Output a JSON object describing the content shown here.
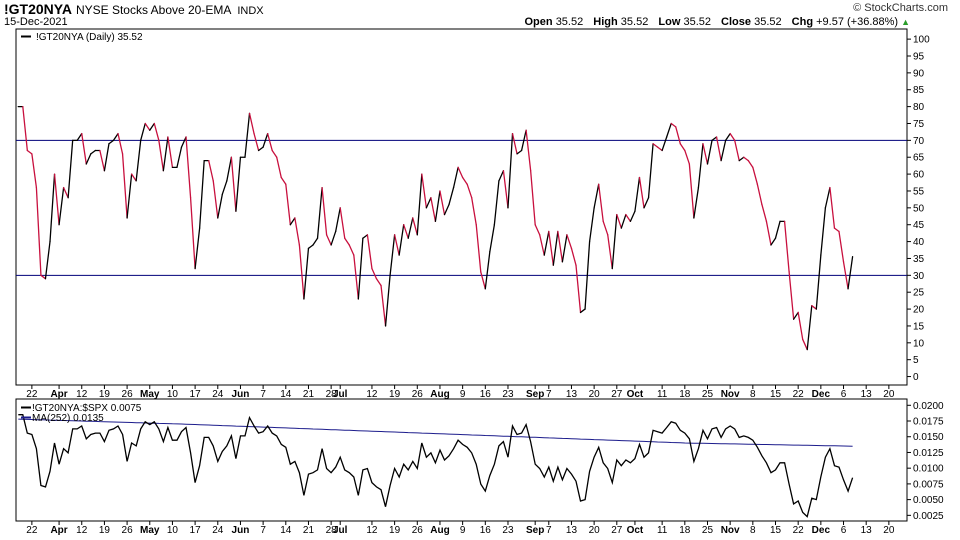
{
  "header": {
    "symbol": "!GT20NYA",
    "description": "NYSE Stocks Above 20-EMA",
    "exchange": "INDX",
    "date": "15-Dec-2021",
    "brand": "© StockCharts.com",
    "open_label": "Open",
    "open": "35.52",
    "high_label": "High",
    "high": "35.52",
    "low_label": "Low",
    "low": "35.52",
    "close_label": "Close",
    "close": "35.52",
    "chg_label": "Chg",
    "chg": "+9.57 (+36.88%)",
    "up_icon": "triangle-up-icon"
  },
  "colors": {
    "up": "#000000",
    "down": "#c8103e",
    "ref": "#00007a",
    "ma": "#1c1c8c"
  },
  "x_axis_labels": [
    {
      "t": "22",
      "i": 3,
      "m": false
    },
    {
      "t": "Apr",
      "i": 9,
      "m": true
    },
    {
      "t": "12",
      "i": 14,
      "m": false
    },
    {
      "t": "19",
      "i": 19,
      "m": false
    },
    {
      "t": "26",
      "i": 24,
      "m": false
    },
    {
      "t": "May",
      "i": 29,
      "m": true
    },
    {
      "t": "10",
      "i": 34,
      "m": false
    },
    {
      "t": "17",
      "i": 39,
      "m": false
    },
    {
      "t": "24",
      "i": 44,
      "m": false
    },
    {
      "t": "Jun",
      "i": 49,
      "m": true
    },
    {
      "t": "7",
      "i": 54,
      "m": false
    },
    {
      "t": "14",
      "i": 59,
      "m": false
    },
    {
      "t": "21",
      "i": 64,
      "m": false
    },
    {
      "t": "28",
      "i": 69,
      "m": false
    },
    {
      "t": "Jul",
      "i": 71,
      "m": true
    },
    {
      "t": "12",
      "i": 78,
      "m": false
    },
    {
      "t": "19",
      "i": 83,
      "m": false
    },
    {
      "t": "26",
      "i": 88,
      "m": false
    },
    {
      "t": "Aug",
      "i": 93,
      "m": true
    },
    {
      "t": "9",
      "i": 98,
      "m": false
    },
    {
      "t": "16",
      "i": 103,
      "m": false
    },
    {
      "t": "23",
      "i": 108,
      "m": false
    },
    {
      "t": "Sep",
      "i": 114,
      "m": true
    },
    {
      "t": "7",
      "i": 117,
      "m": false
    },
    {
      "t": "13",
      "i": 122,
      "m": false
    },
    {
      "t": "20",
      "i": 127,
      "m": false
    },
    {
      "t": "27",
      "i": 132,
      "m": false
    },
    {
      "t": "Oct",
      "i": 136,
      "m": true
    },
    {
      "t": "11",
      "i": 142,
      "m": false
    },
    {
      "t": "18",
      "i": 147,
      "m": false
    },
    {
      "t": "25",
      "i": 152,
      "m": false
    },
    {
      "t": "Nov",
      "i": 157,
      "m": true
    },
    {
      "t": "8",
      "i": 162,
      "m": false
    },
    {
      "t": "15",
      "i": 167,
      "m": false
    },
    {
      "t": "22",
      "i": 172,
      "m": false
    },
    {
      "t": "Dec",
      "i": 177,
      "m": true
    },
    {
      "t": "6",
      "i": 182,
      "m": false
    },
    {
      "t": "13",
      "i": 187,
      "m": false
    },
    {
      "t": "20",
      "i": 192,
      "m": false
    }
  ],
  "chart_data": [
    {
      "type": "line",
      "legend": "!GT20NYA (Daily) 35.52",
      "y_ticks": [
        0,
        5,
        10,
        15,
        20,
        25,
        30,
        35,
        40,
        45,
        50,
        55,
        60,
        65,
        70,
        75,
        80,
        85,
        90,
        95,
        100
      ],
      "ylim": [
        -2.5,
        103
      ],
      "reference_lines": [
        70,
        30
      ],
      "x_index_range": [
        -0.5,
        196
      ],
      "values": [
        80,
        80,
        67,
        66,
        56,
        30,
        29,
        40,
        60,
        45,
        56,
        53,
        70,
        70,
        72,
        63,
        66,
        67,
        67,
        61,
        69,
        70,
        72,
        66,
        47,
        60,
        58,
        70,
        75,
        73,
        75,
        70,
        61,
        71,
        62,
        62,
        68,
        71,
        53,
        32,
        44,
        64,
        64,
        58,
        47,
        54,
        58,
        65,
        49,
        65,
        65,
        78,
        72,
        67,
        68,
        72,
        67,
        65,
        59,
        57,
        45,
        47,
        39,
        23,
        38,
        39,
        41,
        56,
        42,
        39,
        43,
        50,
        41,
        39,
        36,
        23,
        41,
        42,
        32,
        29,
        27,
        15,
        30,
        42,
        36,
        45,
        41,
        47,
        42,
        60,
        50,
        53,
        46,
        55,
        48,
        51,
        56,
        62,
        59,
        57,
        53,
        45,
        31,
        26,
        37,
        45,
        58,
        61,
        50,
        72,
        66,
        67,
        73,
        61,
        45,
        42,
        36,
        43,
        33,
        43,
        34,
        42,
        38,
        33,
        19,
        20,
        40,
        50,
        57,
        46,
        42,
        32,
        48,
        44,
        48,
        46,
        49,
        59,
        50,
        53,
        69,
        68,
        67,
        71,
        75,
        74,
        69,
        67,
        63,
        47,
        56,
        69,
        63,
        70,
        71,
        64,
        70,
        72,
        70,
        64,
        65,
        64,
        62,
        57,
        51,
        46,
        39,
        41,
        46,
        46,
        31,
        17,
        19,
        11,
        8,
        21,
        20,
        36,
        50,
        56,
        44,
        43,
        34,
        26,
        35.52
      ]
    },
    {
      "type": "line",
      "legend": "!GT20NYA:$SPX 0.0075",
      "legend_ma": "MA(252) 0.0135",
      "y_ticks": [
        "0.0025",
        "0.0050",
        "0.0075",
        "0.0100",
        "0.0125",
        "0.0150",
        "0.0175",
        "0.0200"
      ],
      "y_tick_values": [
        0.0025,
        0.005,
        0.0075,
        0.01,
        0.0125,
        0.015,
        0.0175,
        0.02
      ],
      "ylim": [
        0.0016,
        0.021
      ],
      "x_index_range": [
        -0.5,
        196
      ],
      "ratio_series_name": "!GT20NYA:$SPX",
      "ma_series_name": "MA(252)",
      "ma_values": [
        0.0178,
        0.017,
        0.016,
        0.015,
        0.014,
        0.0135
      ]
    }
  ]
}
